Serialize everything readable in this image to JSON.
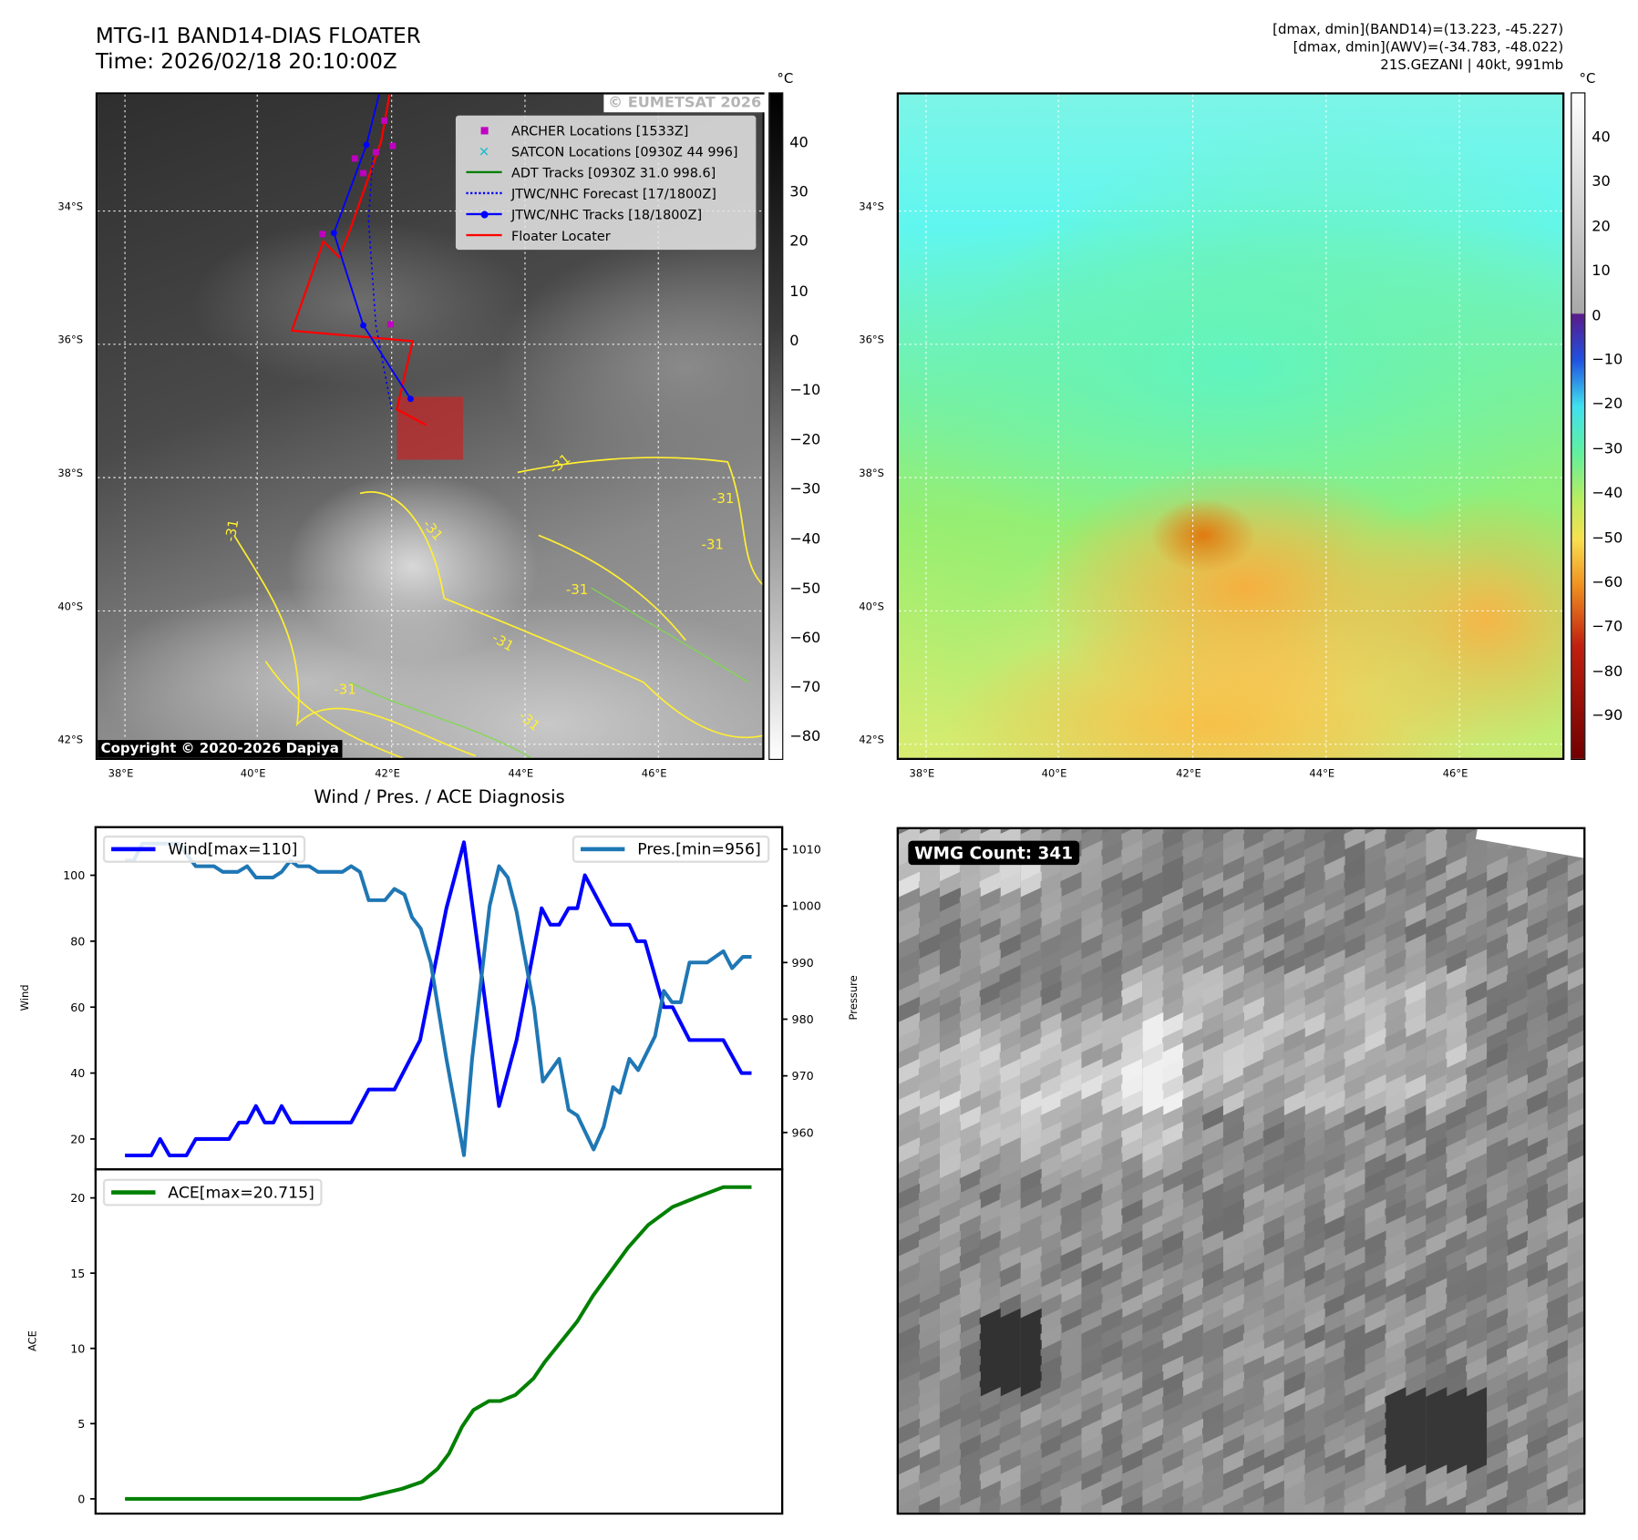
{
  "header": {
    "title_line1": "MTG-I1 BAND14-DIAS FLOATER",
    "title_line2": "Time: 2026/02/18 20:10:00Z",
    "info_line1": "[dmax, dmin](BAND14)=(13.223, -45.227)",
    "info_line2": "[dmax, dmin](AWV)=(-34.783, -48.022)",
    "info_line3": "21S.GEZANI | 40kt, 991mb"
  },
  "map_left": {
    "watermark": "© EUMETSAT 2026",
    "copyright": "Copyright © 2020-2026 Dapiya",
    "lon_ticks": [
      "38°E",
      "40°E",
      "42°E",
      "44°E",
      "46°E"
    ],
    "lat_ticks": [
      "34°S",
      "36°S",
      "38°S",
      "40°S",
      "42°S"
    ],
    "contour_labels": [
      "-31",
      "-31",
      "-31",
      "-31",
      "-31",
      "-31",
      "-31",
      "-31",
      "-31"
    ],
    "legend": [
      {
        "label": "ARCHER Locations [1533Z]",
        "color": "#c000c0"
      },
      {
        "label": "SATCON Locations [0930Z 44 996]",
        "color": "#17becf"
      },
      {
        "label": "ADT Tracks [0930Z 31.0 998.6]",
        "color": "#008000"
      },
      {
        "label": "JTWC/NHC Forecast [17/1800Z]",
        "color": "#0000ff"
      },
      {
        "label": "JTWC/NHC Tracks [18/1800Z]",
        "color": "#0000ff"
      },
      {
        "label": "Floater Locater",
        "color": "#ff0000"
      }
    ],
    "colorbar": {
      "unit": "°C",
      "ticks": [
        "40",
        "30",
        "20",
        "10",
        "0",
        "−10",
        "−20",
        "−30",
        "−40",
        "−50",
        "−60",
        "−70",
        "−80"
      ]
    }
  },
  "map_right": {
    "lon_ticks": [
      "38°E",
      "40°E",
      "42°E",
      "44°E",
      "46°E"
    ],
    "lat_ticks": [
      "34°S",
      "36°S",
      "38°S",
      "40°S",
      "42°S"
    ],
    "colorbar": {
      "unit": "°C",
      "ticks": [
        "40",
        "30",
        "20",
        "10",
        "0",
        "−10",
        "−20",
        "−30",
        "−40",
        "−50",
        "−60",
        "−70",
        "−80",
        "−90"
      ]
    }
  },
  "wmg": {
    "label": "WMG Count: 341"
  },
  "chart_data": {
    "type": "line",
    "title": "Wind / Pres. / ACE Diagnosis",
    "x_label": "",
    "xlim": [
      -4.7,
      104.9
    ],
    "panels": [
      {
        "ylabel": "Wind",
        "ylim": [
          10.8,
          114.6
        ],
        "yticks": [
          20,
          40,
          60,
          80,
          100
        ],
        "y2label": "Pressure",
        "y2lim": [
          953.5,
          1013.9
        ],
        "y2ticks": [
          960,
          970,
          980,
          990,
          1000,
          1010
        ],
        "series": [
          {
            "name": "Wind[max=110]",
            "axis": "left",
            "color": "#0000ff",
            "points": [
              [
                0,
                15
              ],
              [
                4.2,
                15
              ],
              [
                5.6,
                20
              ],
              [
                7.1,
                15
              ],
              [
                9.8,
                15
              ],
              [
                11.3,
                20
              ],
              [
                16.6,
                20
              ],
              [
                18.2,
                25
              ],
              [
                19.5,
                25
              ],
              [
                20.9,
                30
              ],
              [
                22.3,
                25
              ],
              [
                23.7,
                25
              ],
              [
                25,
                30
              ],
              [
                26.5,
                25
              ],
              [
                36.1,
                25
              ],
              [
                38.9,
                35
              ],
              [
                43,
                35
              ],
              [
                47.1,
                50
              ],
              [
                51.3,
                90
              ],
              [
                54.1,
                110
              ],
              [
                59.7,
                30
              ],
              [
                62.5,
                50
              ],
              [
                66.5,
                90
              ],
              [
                67.9,
                85
              ],
              [
                69.3,
                85
              ],
              [
                70.8,
                90
              ],
              [
                72.2,
                90
              ],
              [
                73.4,
                100
              ],
              [
                77.6,
                85
              ],
              [
                80.5,
                85
              ],
              [
                81.7,
                80
              ],
              [
                83,
                80
              ],
              [
                86,
                60
              ],
              [
                87.4,
                60
              ],
              [
                90.1,
                50
              ],
              [
                95.5,
                50
              ],
              [
                98.4,
                40
              ],
              [
                100,
                40
              ]
            ]
          },
          {
            "name": "Pres.[min=956]",
            "axis": "right",
            "color": "#1f77b4",
            "points": [
              [
                0,
                1008
              ],
              [
                1.4,
                1008
              ],
              [
                2.8,
                1011
              ],
              [
                8.5,
                1011
              ],
              [
                11.3,
                1007
              ],
              [
                14.2,
                1007
              ],
              [
                15.6,
                1006
              ],
              [
                18,
                1006
              ],
              [
                19.5,
                1007
              ],
              [
                20.9,
                1005
              ],
              [
                23.6,
                1005
              ],
              [
                25,
                1006
              ],
              [
                26.4,
                1008
              ],
              [
                27.6,
                1007
              ],
              [
                29.4,
                1007
              ],
              [
                30.8,
                1006
              ],
              [
                34.7,
                1006
              ],
              [
                36.1,
                1007
              ],
              [
                37.5,
                1006
              ],
              [
                38.9,
                1001
              ],
              [
                41.5,
                1001
              ],
              [
                43,
                1003
              ],
              [
                44.6,
                1002
              ],
              [
                45.8,
                998
              ],
              [
                47.2,
                996
              ],
              [
                48.8,
                990
              ],
              [
                51.3,
                973
              ],
              [
                54.1,
                956
              ],
              [
                55.4,
                973
              ],
              [
                58.2,
                1000
              ],
              [
                59.7,
                1007
              ],
              [
                61.1,
                1005
              ],
              [
                62.5,
                999
              ],
              [
                65.3,
                982
              ],
              [
                66.7,
                969
              ],
              [
                69.3,
                973
              ],
              [
                70.8,
                964
              ],
              [
                72.2,
                963
              ],
              [
                74.8,
                957
              ],
              [
                76.4,
                961
              ],
              [
                77.9,
                968
              ],
              [
                79,
                967
              ],
              [
                80.5,
                973
              ],
              [
                81.9,
                971
              ],
              [
                84.6,
                977
              ],
              [
                86,
                985
              ],
              [
                87.3,
                983
              ],
              [
                88.7,
                983
              ],
              [
                90.1,
                990
              ],
              [
                92.9,
                990
              ],
              [
                95.5,
                992
              ],
              [
                96.9,
                989
              ],
              [
                98.6,
                991
              ],
              [
                100,
                991
              ]
            ]
          }
        ],
        "legend_left": "Wind[max=110]",
        "legend_right": "Pres.[min=956]"
      },
      {
        "ylabel": "ACE",
        "ylim": [
          -0.98,
          21.9
        ],
        "yticks": [
          0,
          5,
          10,
          15,
          20
        ],
        "series": [
          {
            "name": "ACE[max=20.715]",
            "axis": "left",
            "color": "#008000",
            "points": [
              [
                0,
                0
              ],
              [
                37.5,
                0
              ],
              [
                44.2,
                0.67
              ],
              [
                47.4,
                1.13
              ],
              [
                49.9,
                2.0
              ],
              [
                51.7,
                3.0
              ],
              [
                53.8,
                4.8
              ],
              [
                55.6,
                5.9
              ],
              [
                58.1,
                6.5
              ],
              [
                59.9,
                6.5
              ],
              [
                62.3,
                6.9
              ],
              [
                65.2,
                8.0
              ],
              [
                67,
                9.1
              ],
              [
                69.7,
                10.5
              ],
              [
                72.2,
                11.8
              ],
              [
                74.7,
                13.5
              ],
              [
                76.8,
                14.7
              ],
              [
                80.3,
                16.7
              ],
              [
                83.5,
                18.2
              ],
              [
                87.4,
                19.4
              ],
              [
                91.6,
                20.1
              ],
              [
                95.5,
                20.715
              ],
              [
                100,
                20.715
              ]
            ]
          }
        ],
        "legend_left": "ACE[max=20.715]"
      }
    ]
  }
}
